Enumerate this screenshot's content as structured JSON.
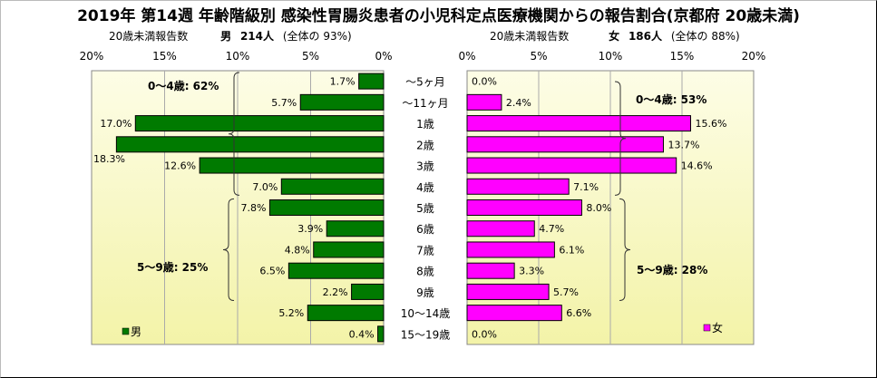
{
  "title": "2019年 第14週 年齢階級別 感染性胃腸炎患者の小児科定点医療機関からの報告割合(京都府 20歳未満)",
  "male_header": {
    "label": "20歳未満報告数",
    "sex": "男",
    "count": "214人",
    "share": "(全体の 93%)"
  },
  "female_header": {
    "label": "20歳未満報告数",
    "sex": "女",
    "count": "186人",
    "share": "(全体の 88%)"
  },
  "chart_data": {
    "type": "bar",
    "orientation": "horizontal-butterfly",
    "categories": [
      "～5ヶ月",
      "～11ヶ月",
      "1歳",
      "2歳",
      "3歳",
      "4歳",
      "5歳",
      "6歳",
      "7歳",
      "8歳",
      "9歳",
      "10～14歳",
      "15～19歳"
    ],
    "series": [
      {
        "name": "男",
        "color": "#007a00",
        "values": [
          1.7,
          5.7,
          17.0,
          18.3,
          12.6,
          7.0,
          7.8,
          3.9,
          4.8,
          6.5,
          2.2,
          5.2,
          0.4
        ],
        "labels": [
          "1.7%",
          "5.7%",
          "17.0%",
          "18.3%",
          "12.6%",
          "7.0%",
          "7.8%",
          "3.9%",
          "4.8%",
          "6.5%",
          "2.2%",
          "5.2%",
          "0.4%"
        ]
      },
      {
        "name": "女",
        "color": "#ff00ff",
        "values": [
          0.0,
          2.4,
          15.6,
          13.7,
          14.6,
          7.1,
          8.0,
          4.7,
          6.1,
          3.3,
          5.7,
          6.6,
          0.0
        ],
        "labels": [
          "0.0%",
          "2.4%",
          "15.6%",
          "13.7%",
          "14.6%",
          "7.1%",
          "8.0%",
          "4.7%",
          "6.1%",
          "3.3%",
          "5.7%",
          "6.6%",
          "0.0%"
        ]
      }
    ],
    "xlim": [
      0,
      20
    ],
    "xticks": [
      "20%",
      "15%",
      "10%",
      "5%",
      "0%"
    ],
    "xticks_right": [
      "0%",
      "5%",
      "10%",
      "15%",
      "20%"
    ],
    "grid": true,
    "group_annotations": {
      "male": [
        "0～4歳: 62%",
        "5～9歳: 25%"
      ],
      "female": [
        "0～4歳: 53%",
        "5～9歳: 28%"
      ]
    },
    "legend": {
      "male": "男",
      "female": "女"
    },
    "colors": {
      "plot_top": "#fdfde6",
      "plot_bottom": "#f3f3a8",
      "grid": "#aaaaaa"
    }
  }
}
